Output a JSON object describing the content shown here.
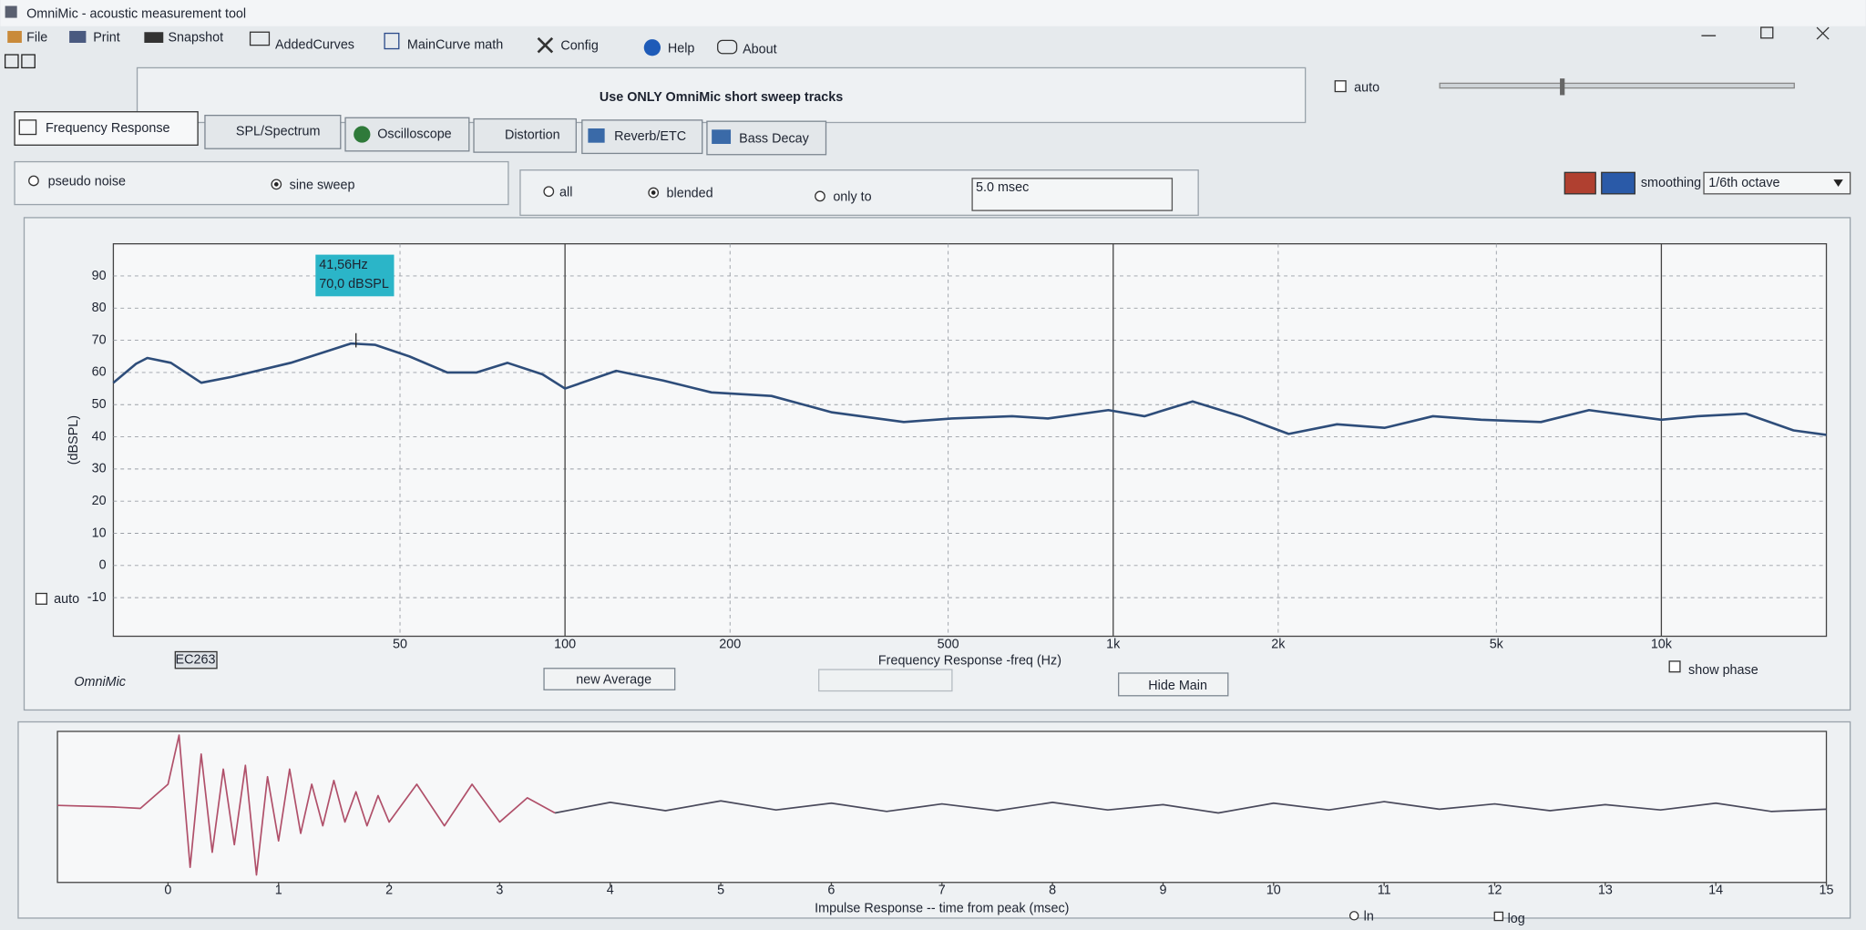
{
  "window": {
    "title": "OmniMic - acoustic measurement tool"
  },
  "menu": [
    "File",
    "Print",
    "Snapshot",
    "AddedCurves",
    "MainCurve math",
    "Config",
    "Help",
    "About"
  ],
  "banner": "Use ONLY OmniMic short sweep tracks",
  "auto_label": "auto",
  "tabs": [
    "Frequency Response",
    "SPL/Spectrum",
    "Oscilloscope",
    "Distortion",
    "Reverb/ETC",
    "Bass Decay"
  ],
  "signal": [
    "pseudo noise",
    "sine sweep"
  ],
  "window_mode": [
    "all",
    "blended",
    "only to"
  ],
  "window_time": "5.0 msec",
  "smoothing_label": "smoothing",
  "smoothing": "1/6th octave",
  "y_auto": "auto",
  "brand": "OmniMic",
  "mic_id": "EC263",
  "buttons": [
    "new Average",
    "Hide Main"
  ],
  "show_phase": "show phase",
  "impulse_scale": [
    "ln",
    "log"
  ],
  "chart_data": [
    {
      "type": "line",
      "x_label": "Frequency Response -freq (Hz)",
      "y_label": "(dBSPL)",
      "log_x": true,
      "grid": true,
      "x": [
        15,
        16.5,
        17.3,
        19.1,
        21.7,
        24.6,
        31.6,
        40.7,
        45,
        52,
        61,
        69,
        78.5,
        91,
        100,
        124,
        151,
        185,
        238,
        307,
        415,
        508,
        654,
        760,
        980,
        1140,
        1396,
        1710,
        2090,
        2560,
        3130,
        3830,
        4690,
        6030,
        7380,
        10000,
        11640,
        14260,
        17420,
        20000
      ],
      "series": [
        {
          "color": "#2e4d7a",
          "values": [
            56.8,
            62.7,
            64.5,
            63,
            56.8,
            58.6,
            63,
            69,
            68.6,
            65,
            60,
            60,
            63,
            59.4,
            55,
            60.5,
            57.5,
            53.8,
            52.7,
            47.6,
            44.6,
            45.7,
            46.4,
            45.7,
            48.3,
            46.4,
            51,
            46.4,
            40.9,
            43.9,
            42.8,
            46.4,
            45.3,
            44.6,
            48.3,
            45.3,
            46.4,
            47.2,
            42,
            40.6
          ]
        }
      ],
      "xlim": [
        15,
        20000
      ],
      "ylim": [
        -22,
        100
      ],
      "xticks": [
        50,
        100,
        200,
        500,
        {
          "value": 1000,
          "label": "1k"
        },
        {
          "value": 2000,
          "label": "2k"
        },
        {
          "value": 5000,
          "label": "5k"
        },
        {
          "value": 10000,
          "label": "10k"
        }
      ],
      "yticks": [
        90,
        80,
        70,
        60,
        50,
        40,
        30,
        20,
        10,
        0,
        -10
      ],
      "cursor": {
        "x": 41.56,
        "y": 70.0,
        "lines": [
          "41,56Hz",
          "70,0 dBSPL"
        ]
      }
    },
    {
      "type": "line",
      "x_label": "Impulse Response -- time from peak (msec)",
      "x": [
        -1,
        -0.5,
        -0.25,
        0,
        0.1,
        0.2,
        0.3,
        0.4,
        0.5,
        0.6,
        0.7,
        0.8,
        0.9,
        1.0,
        1.1,
        1.2,
        1.3,
        1.4,
        1.5,
        1.6,
        1.7,
        1.8,
        1.9,
        2.0,
        2.25,
        2.5,
        2.75,
        3.0,
        3.25,
        3.5,
        4,
        4.5,
        5,
        5.5,
        6,
        6.5,
        7,
        7.5,
        8,
        8.5,
        9,
        9.5,
        10,
        10.5,
        11,
        11.5,
        12,
        12.5,
        13,
        13.5,
        14,
        14.5,
        15
      ],
      "series": [
        {
          "color": "#b0506a",
          "values": [
            0.02,
            0,
            -0.02,
            0.3,
            0.95,
            -0.8,
            0.7,
            -0.6,
            0.5,
            -0.5,
            0.55,
            -0.9,
            0.4,
            -0.45,
            0.5,
            -0.35,
            0.3,
            -0.25,
            0.35,
            -0.2,
            0.2,
            -0.25,
            0.15,
            -0.2,
            0.3,
            -0.25,
            0.3,
            -0.2,
            0.12,
            -0.08,
            null,
            null,
            null,
            null,
            null,
            null,
            null,
            null,
            null,
            null,
            null,
            null,
            null,
            null,
            null,
            null,
            null,
            null,
            null,
            null,
            null,
            null,
            null
          ]
        },
        {
          "color": "#4a4a5c",
          "values": [
            null,
            null,
            null,
            null,
            null,
            null,
            null,
            null,
            null,
            null,
            null,
            null,
            null,
            null,
            null,
            null,
            null,
            null,
            null,
            null,
            null,
            null,
            null,
            null,
            null,
            null,
            null,
            null,
            null,
            -0.08,
            0.06,
            -0.05,
            0.08,
            -0.04,
            0.05,
            -0.06,
            0.04,
            -0.05,
            0.06,
            -0.04,
            0.03,
            -0.08,
            0.05,
            -0.04,
            0.07,
            -0.03,
            0.04,
            -0.05,
            0.03,
            -0.04,
            0.05,
            -0.06,
            -0.03
          ]
        }
      ],
      "xlim": [
        -1,
        15
      ],
      "ylim": [
        -1,
        1
      ],
      "xticks": [
        0,
        1,
        2,
        3,
        4,
        5,
        6,
        7,
        8,
        9,
        10,
        11,
        12,
        13,
        14,
        15
      ]
    }
  ]
}
